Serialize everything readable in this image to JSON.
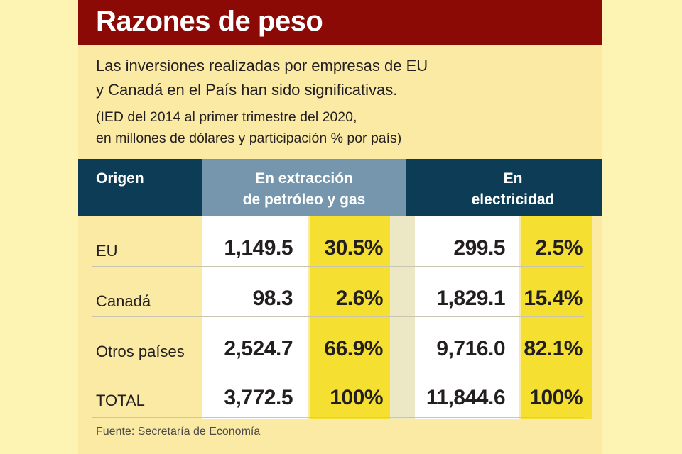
{
  "title": "Razones de peso",
  "subtitle": [
    "Las inversiones realizadas por empresas de EU",
    "y Canadá en el País han sido significativas."
  ],
  "note": [
    "(IED del 2014 al primer trimestre del 2020,",
    "en millones de dólares y participación % por país)"
  ],
  "source": "Fuente: Secretaría de Economía",
  "colors": {
    "title_bg": "#8b0a06",
    "header_dark": "#0d3d56",
    "header_mid": "#7596ad",
    "highlight": "#f5e032",
    "panel": "#fbeaa3"
  },
  "chart_data": {
    "type": "table",
    "title": "Razones de peso",
    "columns": [
      "Origen",
      "En extracción de petróleo y gas",
      "En electricidad"
    ],
    "header": {
      "origen": "Origen",
      "petroleo": [
        "En extracción",
        "de petróleo y gas"
      ],
      "electricidad": [
        "En",
        "electricidad"
      ]
    },
    "rows": [
      {
        "origen": "EU",
        "petroleo_valor": "1,149.5",
        "petroleo_pct": "30.5%",
        "electricidad_valor": "299.5",
        "electricidad_pct": "2.5%"
      },
      {
        "origen": "Canadá",
        "petroleo_valor": "98.3",
        "petroleo_pct": "2.6%",
        "electricidad_valor": "1,829.1",
        "electricidad_pct": "15.4%"
      },
      {
        "origen": "Otros países",
        "petroleo_valor": "2,524.7",
        "petroleo_pct": "66.9%",
        "electricidad_valor": "9,716.0",
        "electricidad_pct": "82.1%"
      },
      {
        "origen": "TOTAL",
        "petroleo_valor": "3,772.5",
        "petroleo_pct": "100%",
        "electricidad_valor": "11,844.6",
        "electricidad_pct": "100%"
      }
    ]
  }
}
